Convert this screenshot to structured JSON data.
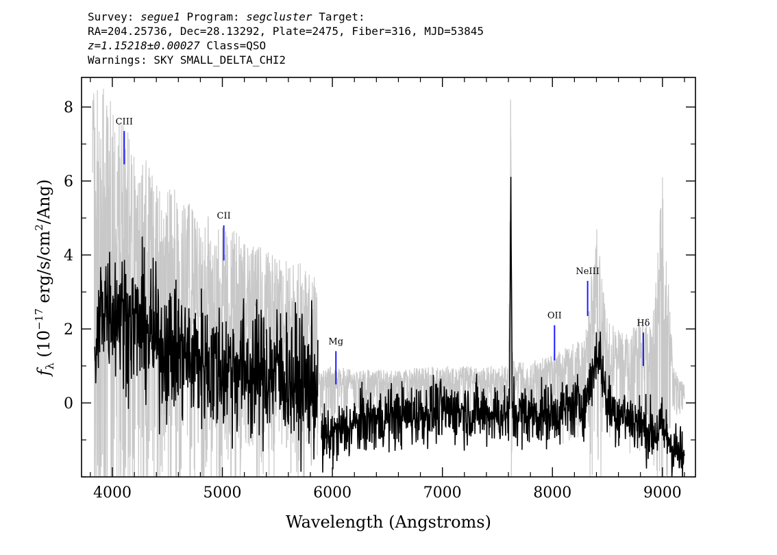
{
  "header": {
    "line1": {
      "survey_label": "Survey:",
      "survey": "segue1",
      "program_label": "Program:",
      "program": "segcluster",
      "target_label": "Target:"
    },
    "line2": "RA=204.25736, Dec=28.13292, Plate=2475, Fiber=316, MJD=53845",
    "line3": {
      "redshift": "z=1.15218±0.00027",
      "class": "Class=QSO"
    },
    "line4": "Warnings: SKY SMALL_DELTA_CHI2"
  },
  "chart_data": {
    "type": "line",
    "xlabel": "Wavelength (Angstroms)",
    "ylabel_main": "f",
    "ylabel_sub": "λ",
    "ylabel_rest": " (10",
    "ylabel_exp": "−17",
    "ylabel_rest2": " erg/s/cm",
    "ylabel_exp2": "2",
    "ylabel_rest3": "/Ang)",
    "xlim": [
      3720,
      9300
    ],
    "ylim": [
      -2,
      8.8
    ],
    "x_ticks": [
      4000,
      5000,
      6000,
      7000,
      8000,
      9000
    ],
    "y_ticks": [
      0,
      2,
      4,
      6,
      8
    ],
    "x_minor_step": 200,
    "y_minor_step": 1,
    "series": [
      {
        "role": "error",
        "color": "#c8c8c8",
        "segments": [
          {
            "x": [
              3820,
              3900,
              4000,
              4100,
              4200,
              4300,
              4400,
              4500,
              4600,
              4700,
              4800,
              4900,
              5000,
              5100,
              5200,
              5300,
              5400,
              5500,
              5600,
              5700,
              5800,
              5870
            ],
            "y": [
              8.8,
              8.8,
              8.2,
              7.6,
              7.0,
              6.6,
              6.2,
              5.9,
              5.7,
              5.4,
              5.2,
              5.0,
              4.8,
              4.7,
              4.5,
              4.3,
              4.1,
              4.0,
              3.9,
              3.8,
              3.6,
              3.5
            ]
          },
          {
            "x": [
              5880,
              6000,
              6200,
              6500,
              7000,
              7500,
              7600,
              7620,
              7640,
              7700,
              8000,
              8300,
              8400,
              8500,
              8700,
              8800,
              8900,
              9000,
              9100,
              9200
            ],
            "y": [
              1.0,
              1.0,
              0.9,
              0.9,
              1.0,
              1.0,
              1.1,
              8.2,
              1.2,
              1.1,
              1.3,
              1.8,
              4.8,
              2.2,
              1.8,
              2.5,
              2.0,
              6.1,
              1.0,
              0.5
            ]
          }
        ]
      },
      {
        "role": "flux",
        "color": "#000000",
        "segments": [
          {
            "x": [
              3840,
              3900,
              4000,
              4100,
              4200,
              4300,
              4400,
              4500,
              4600,
              4700,
              4800,
              4900,
              5000,
              5100,
              5200,
              5300,
              5400,
              5500,
              5600,
              5700,
              5800,
              5870
            ],
            "y": [
              0.5,
              2.8,
              2.6,
              2.4,
              2.1,
              2.0,
              1.6,
              1.5,
              1.4,
              1.2,
              1.2,
              1.0,
              0.9,
              1.0,
              0.9,
              0.8,
              0.8,
              0.9,
              0.7,
              0.5,
              0.5,
              0.4
            ]
          },
          {
            "x": [
              5900,
              6000,
              6200,
              6500,
              7000,
              7500,
              7610,
              7622,
              7635,
              7700,
              8000,
              8300,
              8420,
              8500,
              8700,
              8800,
              8900,
              9000,
              9100,
              9200
            ],
            "y": [
              -1.0,
              -0.9,
              -0.6,
              -0.4,
              -0.2,
              -0.3,
              -0.3,
              5.9,
              -0.2,
              -0.3,
              -0.3,
              0.0,
              1.5,
              -0.1,
              -0.4,
              -0.6,
              -0.8,
              -0.7,
              -1.2,
              -1.6
            ]
          }
        ]
      }
    ],
    "line_marker_color": "#1a1aff",
    "lines": [
      {
        "label": "CIII",
        "x": 4108,
        "y_top": 7.35,
        "y_bottom": 6.45
      },
      {
        "label": "CII",
        "x": 5013,
        "y_top": 4.8,
        "y_bottom": 3.85
      },
      {
        "label": "Mg",
        "x": 6032,
        "y_top": 1.4,
        "y_bottom": 0.5
      },
      {
        "label": "OII",
        "x": 8019,
        "y_top": 2.1,
        "y_bottom": 1.15
      },
      {
        "label": "NeIII",
        "x": 8320,
        "y_top": 3.3,
        "y_bottom": 2.35
      },
      {
        "label": "Hδ",
        "x": 8826,
        "y_top": 1.9,
        "y_bottom": 1.0
      }
    ]
  }
}
